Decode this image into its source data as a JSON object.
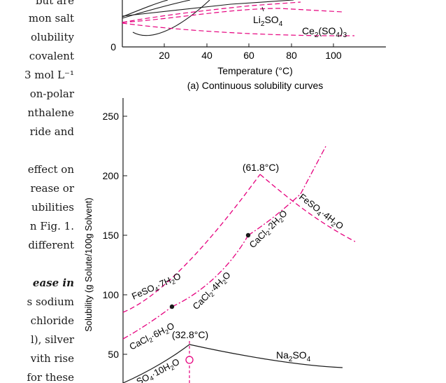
{
  "left_text": [
    "but are",
    "mon salt",
    "olubility",
    "covalent",
    "3 mol L⁻¹",
    "on-polar",
    "nthalene",
    "ride and",
    "effect on",
    "rease or",
    "ubilities",
    "n Fig. 1.",
    "different",
    "ease in",
    "s sodium",
    "chloride",
    "l), silver",
    "vith rise",
    "for these"
  ],
  "chart_top": {
    "x_ticks": [
      "20",
      "40",
      "60",
      "80",
      "100"
    ],
    "y_ticks": [
      "0"
    ],
    "xlabel": "Temperature (°C)",
    "caption": "(a) Continuous solubility curves",
    "labels": {
      "li2so4": [
        "Li",
        "2",
        "SO",
        "4"
      ],
      "ce2so43": [
        "Ce",
        "2",
        "(SO",
        "4",
        ")",
        "3"
      ]
    }
  },
  "chart_bottom": {
    "y_ticks": [
      "250",
      "200",
      "150",
      "100",
      "50"
    ],
    "ylabel": "Solubility (g Solute/100g Solvent)",
    "annotations": {
      "t1": "(61.8°C)",
      "t2": "(32.8°C)"
    },
    "labels": {
      "feso4_7": [
        "FeSO",
        "4",
        "·7H",
        "2",
        "O"
      ],
      "feso4_4": [
        "FeSO",
        "4",
        "·4H",
        "2",
        "O"
      ],
      "cacl2_2": [
        "CaCl",
        "2",
        "·2H",
        "2",
        "O"
      ],
      "cacl2_4": [
        "CaCl",
        "2",
        "·4H",
        "2",
        "O"
      ],
      "cacl2_6": [
        "CaCl",
        "2",
        "·6H",
        "2",
        "O"
      ],
      "na2so4": [
        "Na",
        "2",
        "SO",
        "4"
      ],
      "na2so4_10": [
        "SO",
        "4",
        "·10H",
        "2",
        "O"
      ]
    }
  },
  "colors": {
    "magenta": "#e6007e",
    "line": "#1a1a1a"
  }
}
